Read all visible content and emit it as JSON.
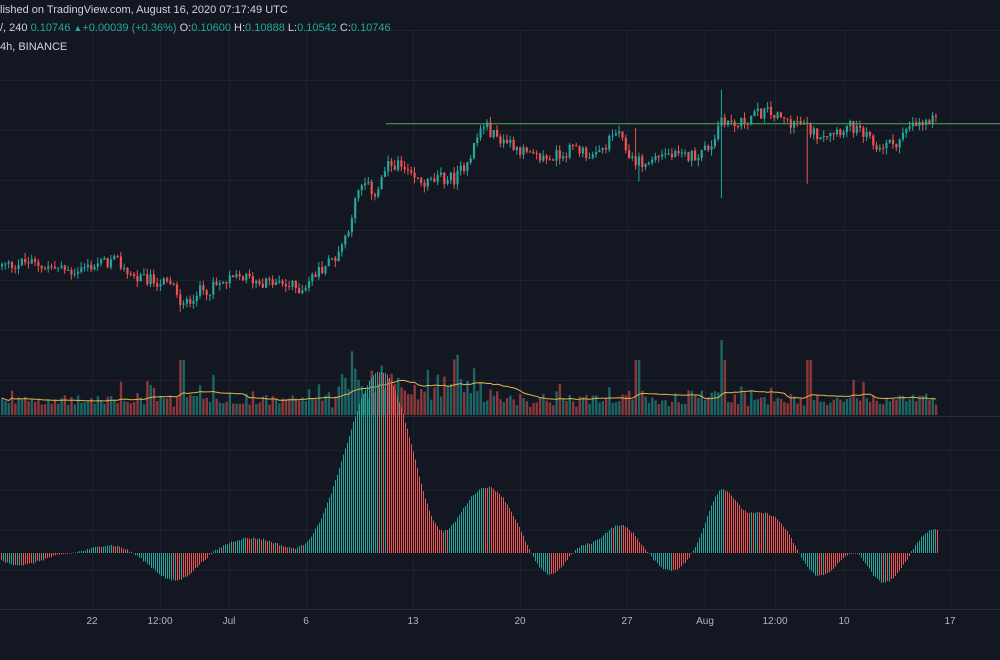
{
  "header": {
    "published": "lished on TradingView.com, August 16, 2020 07:17:49 UTC",
    "interval": "240",
    "change": "+0.00039 (+0.36%)",
    "price": "0.10746",
    "open_label": "O:",
    "open": "0.10600",
    "high_label": "H:",
    "high": "0.10888",
    "low_label": "L:",
    "low": "0.10542",
    "close_label": "C:",
    "close": "0.10746",
    "exchange": "4h, BINANCE"
  },
  "colors": {
    "background": "#131722",
    "up": "#26a69a",
    "down": "#ef5350",
    "volume_ma": "#e0b64f",
    "resistance": "#4caf50",
    "grid": "#1e2230"
  },
  "chart_data": {
    "type": "candlestick",
    "xaxis_labels": [
      "22",
      "12:00",
      "Jul",
      "6",
      "13",
      "20",
      "27",
      "Aug",
      "12:00",
      "10",
      "17"
    ],
    "resistance_level": 0.1068,
    "price_range": [
      0.082,
      0.112
    ],
    "anchors": [
      [
        0,
        0.093
      ],
      [
        25,
        0.0934
      ],
      [
        45,
        0.093
      ],
      [
        70,
        0.0925
      ],
      [
        95,
        0.0932
      ],
      [
        115,
        0.0935
      ],
      [
        135,
        0.0918
      ],
      [
        160,
        0.0915
      ],
      [
        175,
        0.0908
      ],
      [
        180,
        0.0888
      ],
      [
        195,
        0.0905
      ],
      [
        215,
        0.091
      ],
      [
        240,
        0.092
      ],
      [
        260,
        0.0915
      ],
      [
        285,
        0.0912
      ],
      [
        300,
        0.0908
      ],
      [
        320,
        0.0928
      ],
      [
        335,
        0.094
      ],
      [
        345,
        0.096
      ],
      [
        355,
        0.0995
      ],
      [
        362,
        0.101
      ],
      [
        375,
        0.1
      ],
      [
        385,
        0.1025
      ],
      [
        395,
        0.103
      ],
      [
        410,
        0.1015
      ],
      [
        425,
        0.101
      ],
      [
        440,
        0.1015
      ],
      [
        455,
        0.1015
      ],
      [
        470,
        0.104
      ],
      [
        482,
        0.1068
      ],
      [
        495,
        0.1055
      ],
      [
        510,
        0.105
      ],
      [
        530,
        0.1035
      ],
      [
        550,
        0.1035
      ],
      [
        575,
        0.1045
      ],
      [
        595,
        0.1035
      ],
      [
        615,
        0.106
      ],
      [
        630,
        0.1035
      ],
      [
        645,
        0.1028
      ],
      [
        660,
        0.104
      ],
      [
        680,
        0.1035
      ],
      [
        700,
        0.104
      ],
      [
        712,
        0.105
      ],
      [
        720,
        0.1075
      ],
      [
        735,
        0.1065
      ],
      [
        750,
        0.1075
      ],
      [
        765,
        0.108
      ],
      [
        780,
        0.1072
      ],
      [
        800,
        0.1068
      ],
      [
        815,
        0.1058
      ],
      [
        835,
        0.1062
      ],
      [
        850,
        0.1065
      ],
      [
        865,
        0.1055
      ],
      [
        875,
        0.1045
      ],
      [
        895,
        0.105
      ],
      [
        910,
        0.1065
      ],
      [
        925,
        0.1068
      ],
      [
        938,
        0.1072
      ]
    ],
    "spike_highs": [
      [
        721,
        0.1101
      ],
      [
        636,
        0.1064
      ]
    ],
    "spike_lows": [
      [
        722,
        0.0996
      ],
      [
        807,
        0.101
      ],
      [
        637,
        0.1012
      ],
      [
        180,
        0.0886
      ]
    ]
  }
}
